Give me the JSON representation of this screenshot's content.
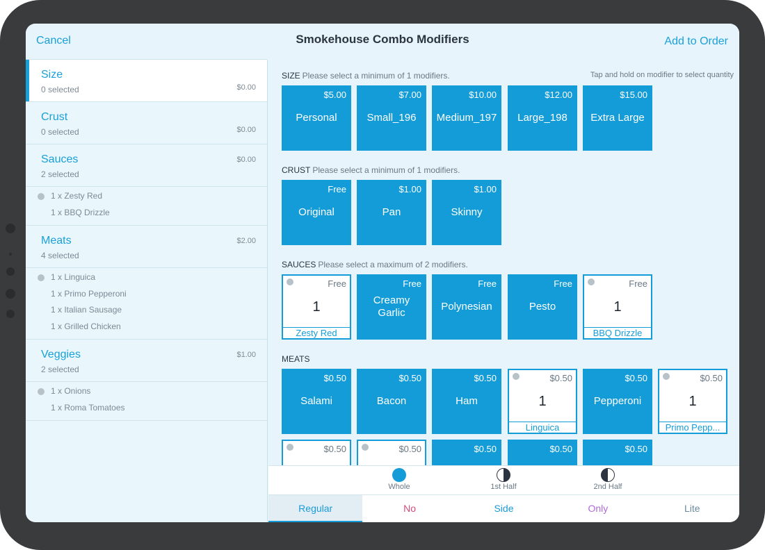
{
  "header": {
    "cancel": "Cancel",
    "title": "Smokehouse Combo Modifiers",
    "add_to_order": "Add to Order"
  },
  "sidebar": {
    "categories": [
      {
        "name": "Size",
        "count": "0 selected",
        "price": "$0.00",
        "items": []
      },
      {
        "name": "Crust",
        "count": "0 selected",
        "price": "$0.00",
        "items": []
      },
      {
        "name": "Sauces",
        "count": "2 selected",
        "price": "$0.00",
        "items": [
          "1 x Zesty Red",
          "1 x BBQ Drizzle"
        ]
      },
      {
        "name": "Meats",
        "count": "4 selected",
        "price": "$2.00",
        "items": [
          "1 x Linguica",
          "1 x Primo Pepperoni",
          "1 x Italian Sausage",
          "1 x Grilled Chicken"
        ]
      },
      {
        "name": "Veggies",
        "count": "2 selected",
        "price": "$1.00",
        "items": [
          "1 x Onions",
          "1 x Roma Tomatoes"
        ]
      }
    ]
  },
  "tap_hint": "Tap and hold on modifier to select quantity",
  "sections": {
    "size": {
      "label": "SIZE",
      "hint": "Please select a minimum of 1 modifiers.",
      "tiles": [
        {
          "price": "$5.00",
          "label": "Personal"
        },
        {
          "price": "$7.00",
          "label": "Small_196"
        },
        {
          "price": "$10.00",
          "label": "Medium_197"
        },
        {
          "price": "$12.00",
          "label": "Large_198"
        },
        {
          "price": "$15.00",
          "label": "Extra Large"
        }
      ]
    },
    "crust": {
      "label": "CRUST",
      "hint": "Please select a minimum of 1 modifiers.",
      "tiles": [
        {
          "price": "Free",
          "label": "Original"
        },
        {
          "price": "$1.00",
          "label": "Pan"
        },
        {
          "price": "$1.00",
          "label": "Skinny"
        }
      ]
    },
    "sauces": {
      "label": "SAUCES",
      "hint": "Please select a maximum of 2 modifiers.",
      "tiles": [
        {
          "price": "Free",
          "label": "Zesty Red",
          "qty": "1"
        },
        {
          "price": "Free",
          "label": "Creamy Garlic"
        },
        {
          "price": "Free",
          "label": "Polynesian"
        },
        {
          "price": "Free",
          "label": "Pesto"
        },
        {
          "price": "Free",
          "label": "BBQ Drizzle",
          "qty": "1"
        }
      ]
    },
    "meats": {
      "label": "MEATS",
      "tiles": [
        {
          "price": "$0.50",
          "label": "Salami"
        },
        {
          "price": "$0.50",
          "label": "Bacon"
        },
        {
          "price": "$0.50",
          "label": "Ham"
        },
        {
          "price": "$0.50",
          "label": "Linguica",
          "qty": "1"
        },
        {
          "price": "$0.50",
          "label": "Pepperoni"
        },
        {
          "price": "$0.50",
          "label": "Primo Pepp...",
          "qty": "1"
        },
        {
          "price": "$0.50"
        },
        {
          "price": "$0.50"
        },
        {
          "price": "$0.50"
        },
        {
          "price": "$0.50"
        },
        {
          "price": "$0.50"
        }
      ]
    }
  },
  "portions": [
    {
      "label": "Whole",
      "icon": "whole-circle-icon"
    },
    {
      "label": "1st Half",
      "icon": "first-half-icon"
    },
    {
      "label": "2nd Half",
      "icon": "second-half-icon"
    }
  ],
  "preparations": [
    {
      "label": "Regular",
      "color": "#1a9ad6"
    },
    {
      "label": "No",
      "color": "#d64a7a"
    },
    {
      "label": "Side",
      "color": "#1a9ad6"
    },
    {
      "label": "Only",
      "color": "#b06ad6"
    },
    {
      "label": "Lite",
      "color": "#6a8aa0"
    }
  ]
}
